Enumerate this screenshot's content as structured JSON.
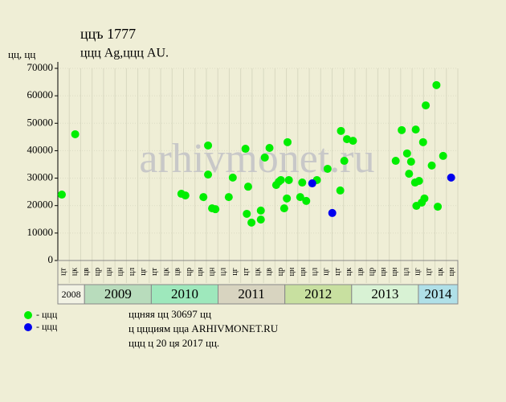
{
  "chart_data": {
    "type": "scatter",
    "title": "ццъ 1777",
    "subtitle": "ццц Ag,ццц AU.",
    "y_label": "цц, цц",
    "watermark": "arhivmonet.ru",
    "xlim": [
      2008.6,
      2014.59
    ],
    "xticks": [
      2008,
      2009,
      2010,
      2011,
      2012,
      2013,
      2014
    ],
    "band_colors": [
      "#f2f2e4",
      "#b8dcbc",
      "#9ee8bc",
      "#d8d4c0",
      "#c8e0a0",
      "#d8f2d4",
      "#b0e0e8"
    ],
    "minor_labels": [
      "цт",
      "цк",
      "цв",
      "цр",
      "цн",
      "цн",
      "цл",
      "цг",
      "цт",
      "цк",
      "цв",
      "цр",
      "цн",
      "цн",
      "цл",
      "цг",
      "цт",
      "цк",
      "цв",
      "цр",
      "цн",
      "цн",
      "цл",
      "цг",
      "цт",
      "цк",
      "цв",
      "цр",
      "цн",
      "цн",
      "цл",
      "цг",
      "цт",
      "цк",
      "цн"
    ],
    "ylim": [
      0,
      70000
    ],
    "yticks": [
      0,
      10000,
      20000,
      30000,
      40000,
      50000,
      60000,
      70000
    ],
    "grid": true,
    "series": [
      {
        "name": "- ццц",
        "color": "#00ee00",
        "x": [
          2008.66,
          2008.86,
          2010.45,
          2010.51,
          2010.78,
          2010.85,
          2010.85,
          2010.91,
          2010.96,
          2011.16,
          2011.22,
          2011.41,
          2011.43,
          2011.45,
          2011.5,
          2011.64,
          2011.64,
          2011.7,
          2011.77,
          2011.87,
          2011.91,
          2011.94,
          2011.99,
          2012.03,
          2012.04,
          2012.06,
          2012.23,
          2012.26,
          2012.32,
          2012.48,
          2012.64,
          2012.83,
          2012.84,
          2012.89,
          2012.93,
          2013.02,
          2013.66,
          2013.75,
          2013.83,
          2013.86,
          2013.89,
          2013.95,
          2013.96,
          2013.97,
          2014.01,
          2014.05,
          2014.07,
          2014.09,
          2014.11,
          2014.2,
          2014.27,
          2014.29,
          2014.37
        ],
        "values": [
          24000,
          46000,
          24300,
          23700,
          23100,
          41900,
          31300,
          19000,
          18700,
          23100,
          30200,
          40700,
          17000,
          26900,
          13800,
          18200,
          14900,
          37500,
          41000,
          27500,
          28700,
          29300,
          19000,
          22600,
          43100,
          29300,
          23100,
          28400,
          21700,
          29300,
          33400,
          25500,
          47200,
          36300,
          44200,
          43600,
          36300,
          47500,
          39000,
          31600,
          36000,
          28400,
          47700,
          19900,
          29000,
          21100,
          43100,
          22600,
          56500,
          34600,
          63900,
          19600,
          38100
        ]
      },
      {
        "name": "- ццц",
        "color": "#0000ee",
        "x": [
          2012.41,
          2012.71,
          2014.49
        ],
        "values": [
          28100,
          17300,
          30200
        ]
      }
    ],
    "notes": [
      "ццняя цц 30697 цц",
      "ц ццциям цца ARHIVMONET.RU",
      "ццц ц 20 ця 2017 цц."
    ]
  }
}
